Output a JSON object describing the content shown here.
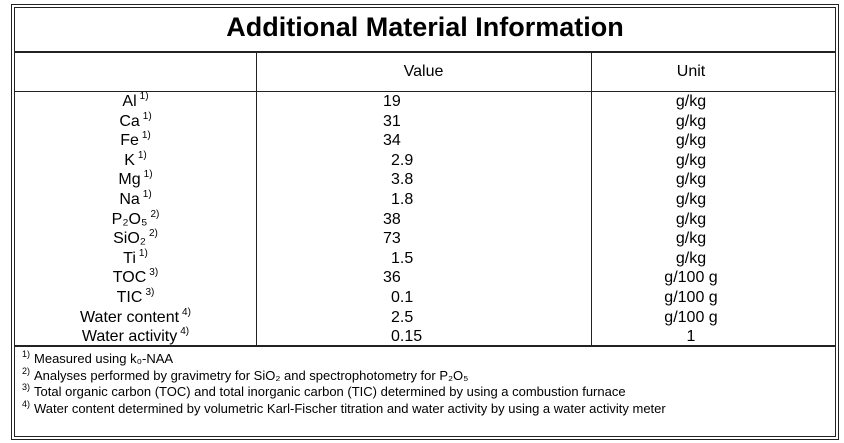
{
  "title": "Additional Material Information",
  "table": {
    "header": [
      "Value",
      "Unit"
    ],
    "rows": [
      {
        "name": "Al",
        "note": "1)",
        "value": 19,
        "unit": "g/kg"
      },
      {
        "name": "Ca",
        "note": "1)",
        "value": 31,
        "unit": "g/kg"
      },
      {
        "name": "Fe",
        "note": "1)",
        "value": 34,
        "unit": "g/kg"
      },
      {
        "name": "K",
        "note": "1)",
        "value": 2.9,
        "unit": "g/kg"
      },
      {
        "name": "Mg",
        "note": "1)",
        "value": 3.8,
        "unit": "g/kg"
      },
      {
        "name": "Na",
        "note": "1)",
        "value": 1.8,
        "unit": "g/kg"
      },
      {
        "name": "P₂O₅",
        "note": "2)",
        "value": 38,
        "unit": "g/kg"
      },
      {
        "name": "SiO₂",
        "note": "2)",
        "value": 73,
        "unit": "g/kg"
      },
      {
        "name": "Ti",
        "note": "1)",
        "value": 1.5,
        "unit": "g/kg"
      },
      {
        "name": "TOC",
        "note": "3)",
        "value": 36,
        "unit": "g/100 g"
      },
      {
        "name": "TIC",
        "note": "3)",
        "value": 0.1,
        "unit": "g/100 g"
      },
      {
        "name": "Water content",
        "note": "4)",
        "value": 2.5,
        "unit": "g/100 g"
      },
      {
        "name": "Water activity",
        "note": "4)",
        "value": 0.15,
        "unit": "1"
      }
    ]
  },
  "footnotes": [
    {
      "mark": "1)",
      "text": "Measured using k₀-NAA"
    },
    {
      "mark": "2)",
      "text": "Analyses performed by gravimetry for SiO₂ and spectrophotometry for P₂O₅"
    },
    {
      "mark": "3)",
      "text": "Total organic carbon (TOC) and total inorganic carbon (TIC) determined by using a combustion furnace"
    },
    {
      "mark": "4)",
      "text": "Water content determined by volumetric Karl-Fischer titration and water activity by using a water activity meter"
    }
  ]
}
